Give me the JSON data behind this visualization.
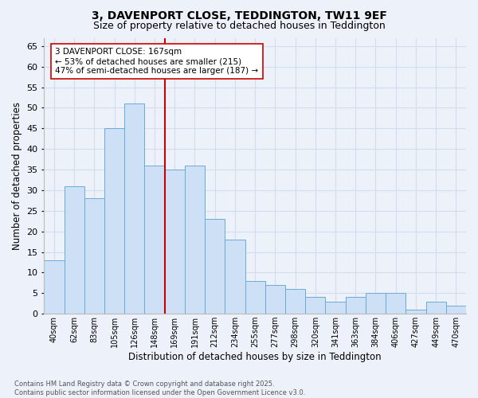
{
  "title": "3, DAVENPORT CLOSE, TEDDINGTON, TW11 9EF",
  "subtitle": "Size of property relative to detached houses in Teddington",
  "xlabel": "Distribution of detached houses by size in Teddington",
  "ylabel": "Number of detached properties",
  "categories": [
    "40sqm",
    "62sqm",
    "83sqm",
    "105sqm",
    "126sqm",
    "148sqm",
    "169sqm",
    "191sqm",
    "212sqm",
    "234sqm",
    "255sqm",
    "277sqm",
    "298sqm",
    "320sqm",
    "341sqm",
    "363sqm",
    "384sqm",
    "406sqm",
    "427sqm",
    "449sqm",
    "470sqm"
  ],
  "values": [
    13,
    31,
    28,
    45,
    51,
    36,
    35,
    36,
    23,
    18,
    8,
    7,
    6,
    4,
    3,
    4,
    5,
    5,
    1,
    3,
    2
  ],
  "bar_color": "#cde0f5",
  "bar_edge_color": "#6aabd6",
  "vline_color": "#cc0000",
  "annotation_text": "3 DAVENPORT CLOSE: 167sqm\n← 53% of detached houses are smaller (215)\n47% of semi-detached houses are larger (187) →",
  "annotation_box_color": "#ffffff",
  "annotation_box_edge": "#cc0000",
  "ylim": [
    0,
    67
  ],
  "yticks": [
    0,
    5,
    10,
    15,
    20,
    25,
    30,
    35,
    40,
    45,
    50,
    55,
    60,
    65
  ],
  "grid_color": "#d4ddf0",
  "bg_color": "#edf1f9",
  "footer": "Contains HM Land Registry data © Crown copyright and database right 2025.\nContains public sector information licensed under the Open Government Licence v3.0.",
  "title_fontsize": 10,
  "subtitle_fontsize": 9,
  "xlabel_fontsize": 8.5,
  "ylabel_fontsize": 8.5,
  "annotation_fontsize": 7.5,
  "footer_fontsize": 6.0
}
